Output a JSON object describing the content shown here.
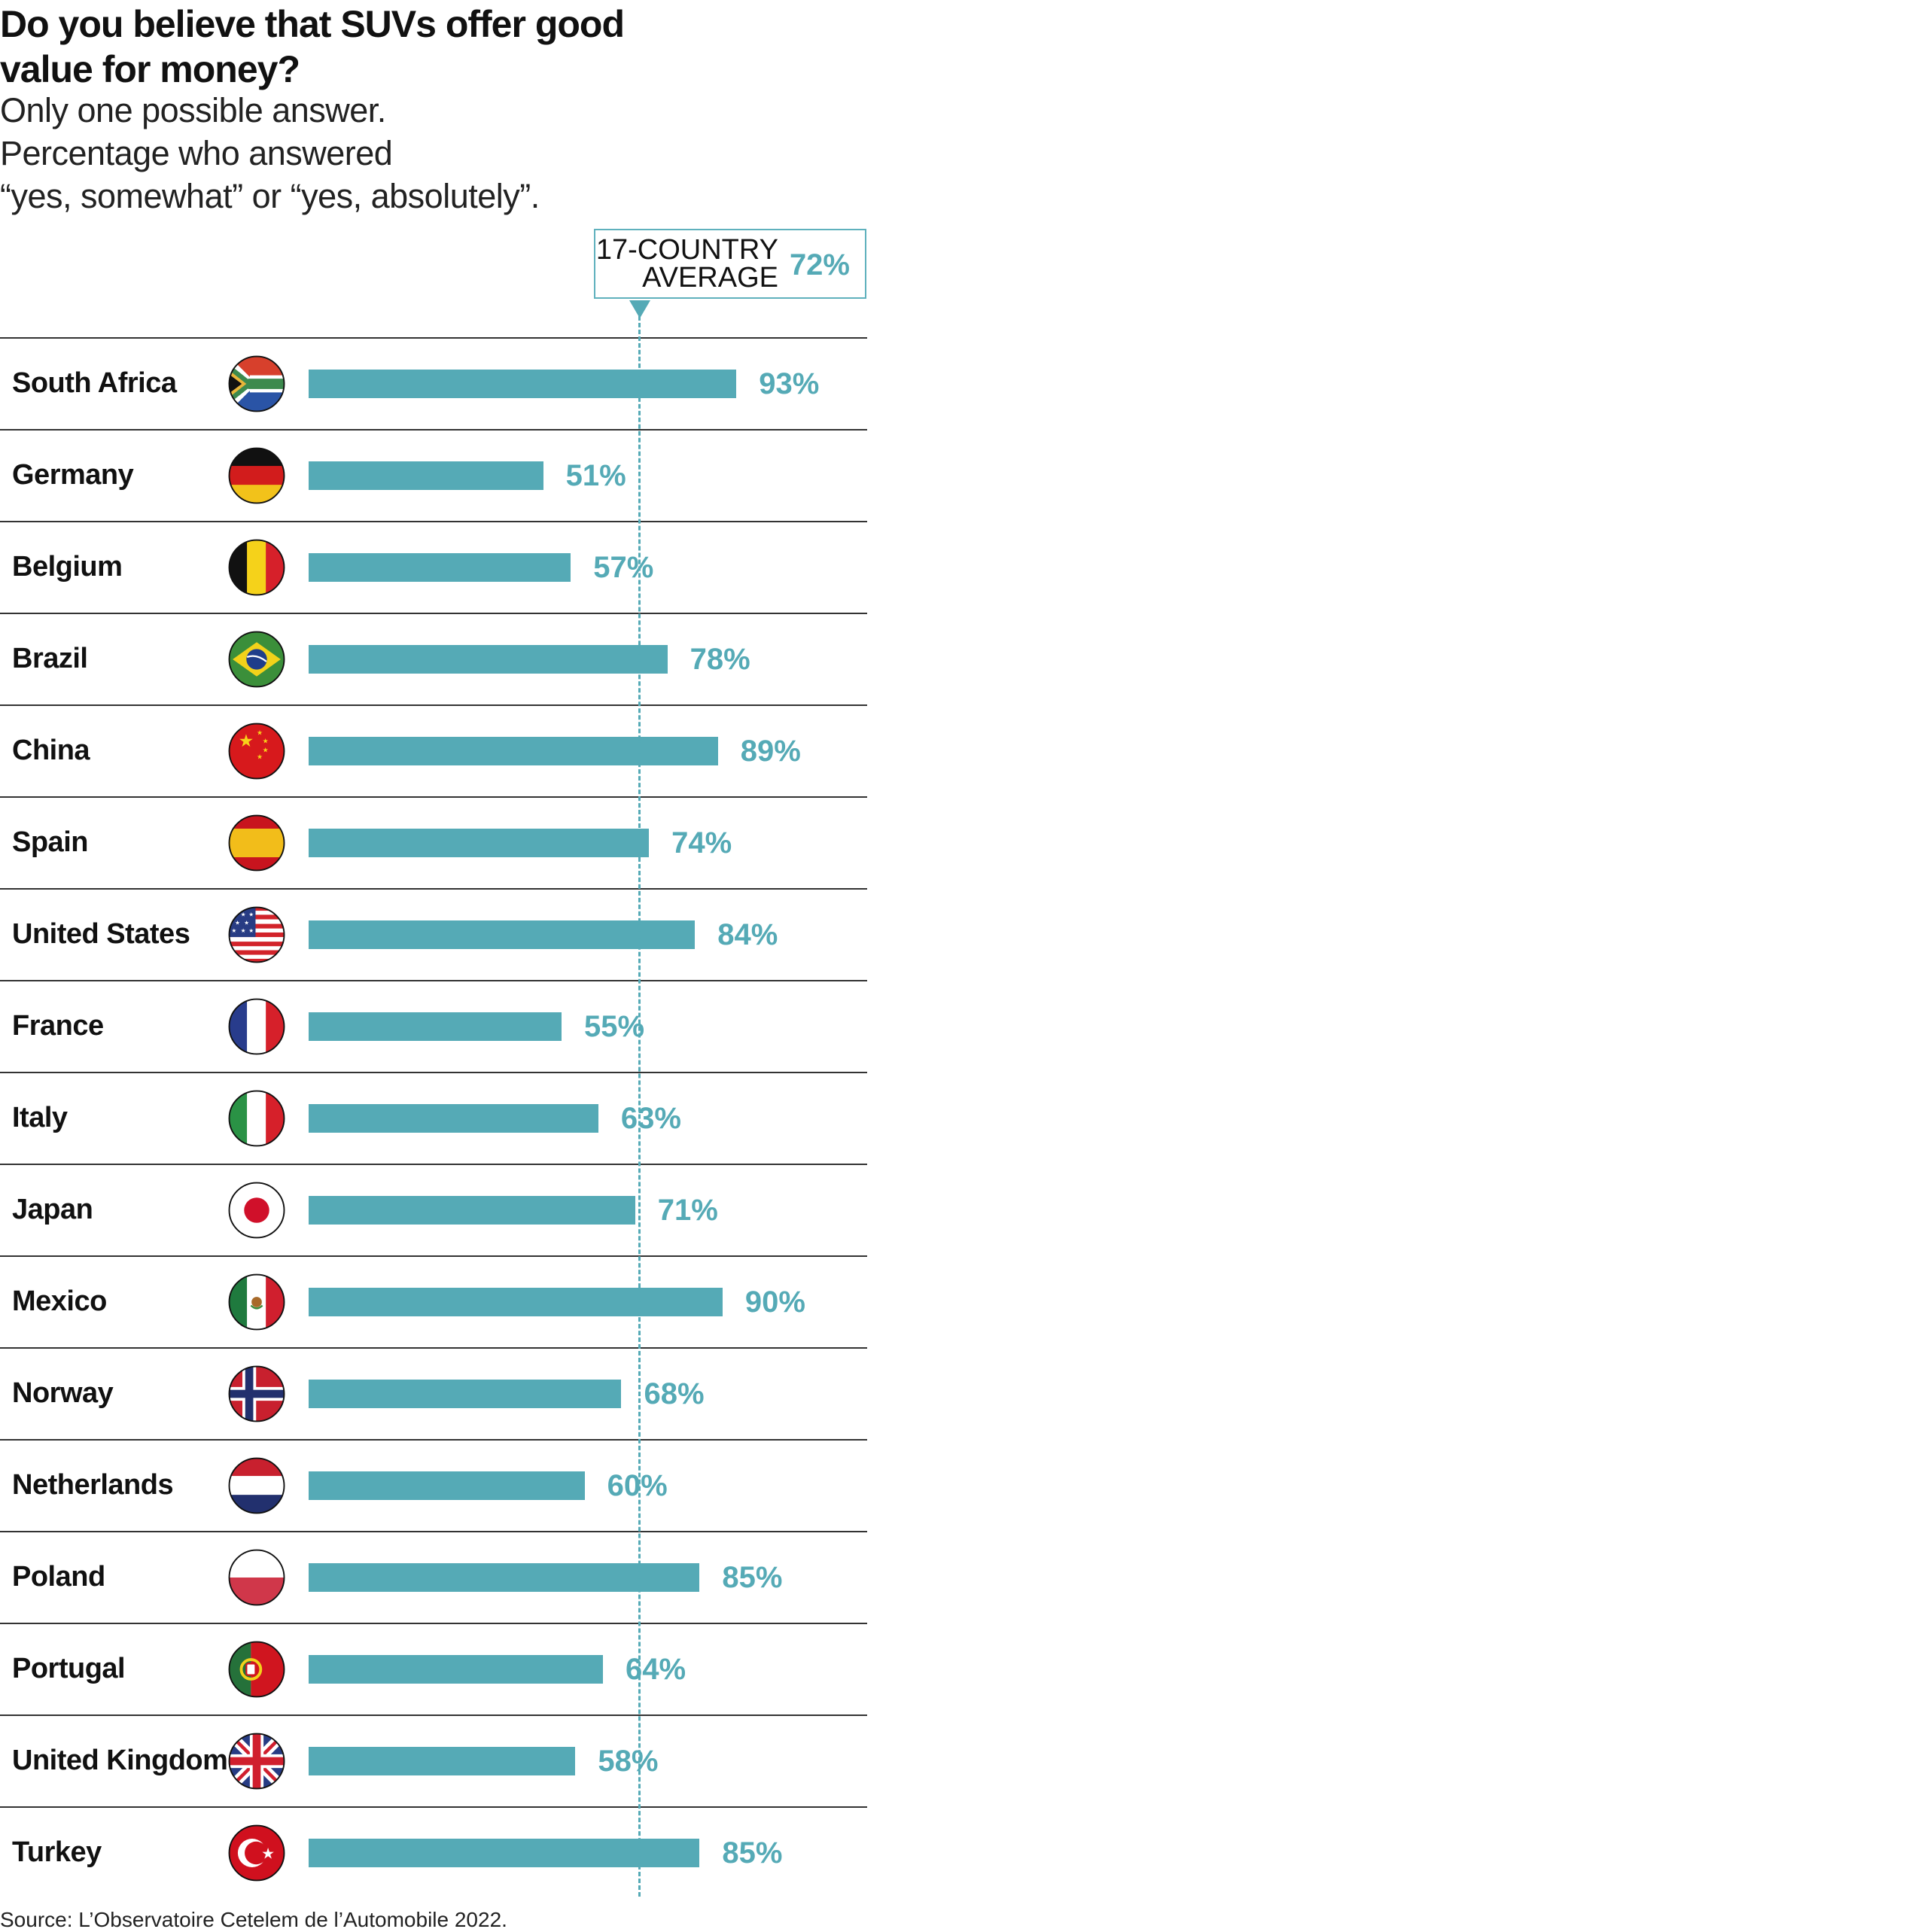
{
  "title": [
    "Do you believe that SUVs offer good",
    "value for money?"
  ],
  "subtitle": [
    "Only one possible answer.",
    "Percentage who answered",
    "“yes, somewhat” or “yes, absolutely”."
  ],
  "average": {
    "label_line1": "17-COUNTRY",
    "label_line2": "AVERAGE",
    "value": 72,
    "value_label": "72%"
  },
  "colors": {
    "bar": "#55aab6",
    "text": "#111111",
    "rule": "#333333"
  },
  "source": "Source: L’Observatoire Cetelem de l’Automobile 2022.",
  "chart_data": {
    "type": "bar",
    "orientation": "horizontal",
    "title": "Do you believe that SUVs offer good value for money?",
    "unit": "%",
    "xlim": [
      0,
      100
    ],
    "reference_line": {
      "label": "17-COUNTRY AVERAGE",
      "value": 72
    },
    "categories": [
      "South Africa",
      "Germany",
      "Belgium",
      "Brazil",
      "China",
      "Spain",
      "United States",
      "France",
      "Italy",
      "Japan",
      "Mexico",
      "Norway",
      "Netherlands",
      "Poland",
      "Portugal",
      "United Kingdom",
      "Turkey"
    ],
    "values": [
      93,
      51,
      57,
      78,
      89,
      74,
      84,
      55,
      63,
      71,
      90,
      68,
      60,
      85,
      64,
      58,
      85
    ],
    "labels": [
      "93%",
      "51%",
      "57%",
      "78%",
      "89%",
      "74%",
      "84%",
      "55%",
      "63%",
      "71%",
      "90%",
      "68%",
      "60%",
      "85%",
      "64%",
      "58%",
      "85%"
    ],
    "flags": [
      "za",
      "de",
      "be",
      "br",
      "cn",
      "es",
      "us",
      "fr",
      "it",
      "jp",
      "mx",
      "no",
      "nl",
      "pl",
      "pt",
      "gb",
      "tr"
    ]
  }
}
